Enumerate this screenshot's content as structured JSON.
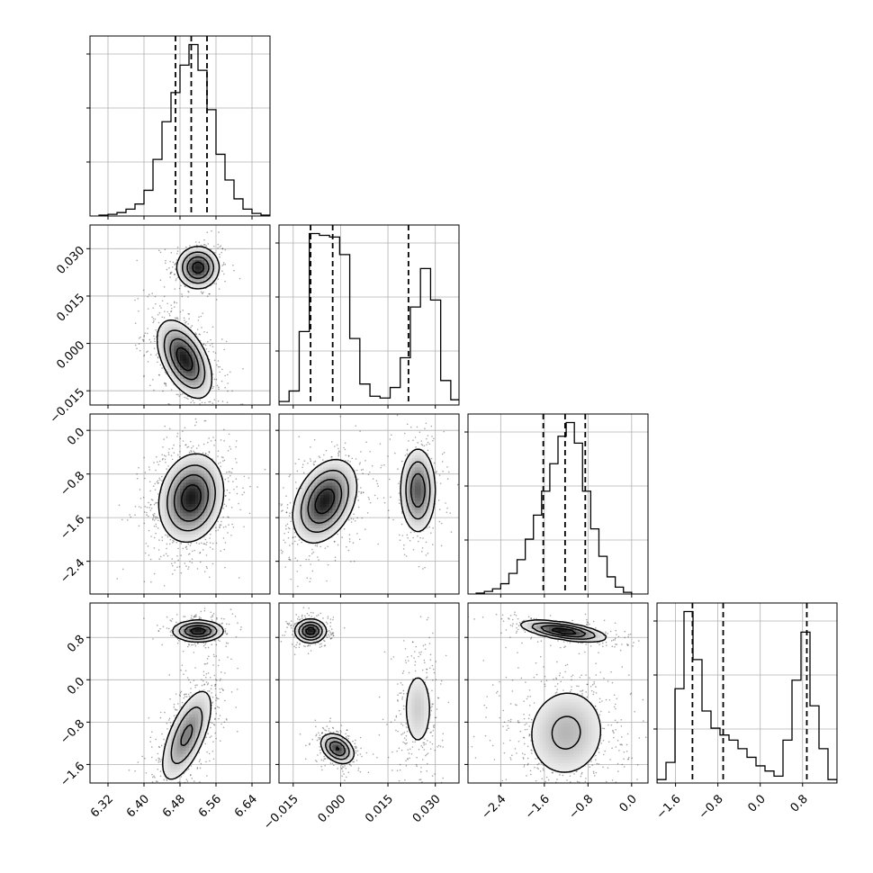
{
  "chart_data": {
    "type": "corner",
    "grid": true,
    "parameters": [
      {
        "name": "",
        "range": [
          6.28,
          6.68
        ],
        "ticks": [
          6.32,
          6.4,
          6.48,
          6.56,
          6.64
        ],
        "tick_labels": [
          "6.32",
          "6.40",
          "6.48",
          "6.56",
          "6.64"
        ],
        "quantiles": [
          6.47,
          6.505,
          6.54
        ],
        "hist_bins": [
          6.3,
          6.32,
          6.34,
          6.36,
          6.38,
          6.4,
          6.42,
          6.44,
          6.46,
          6.48,
          6.5,
          6.52,
          6.54,
          6.56,
          6.58,
          6.6,
          6.62,
          6.64,
          6.66
        ],
        "hist_counts": [
          0.005,
          0.01,
          0.02,
          0.04,
          0.07,
          0.15,
          0.33,
          0.55,
          0.72,
          0.88,
          1.0,
          0.85,
          0.62,
          0.36,
          0.21,
          0.1,
          0.04,
          0.015,
          0.005
        ]
      },
      {
        "name": "",
        "range": [
          -0.0195,
          0.0375
        ],
        "ticks": [
          -0.015,
          0.0,
          0.015,
          0.03
        ],
        "tick_labels": [
          "−0.015",
          "0.000",
          "0.015",
          "0.030"
        ],
        "quantiles": [
          -0.0095,
          -0.0025,
          0.0215
        ],
        "hist_bins": [
          -0.0195,
          -0.0163,
          -0.0131,
          -0.0099,
          -0.0067,
          -0.0035,
          -0.0003,
          0.0029,
          0.0061,
          0.0093,
          0.0125,
          0.0157,
          0.0189,
          0.0221,
          0.0253,
          0.0285,
          0.0317,
          0.0349
        ],
        "hist_counts": [
          0.02,
          0.08,
          0.42,
          0.98,
          0.97,
          0.96,
          0.86,
          0.38,
          0.12,
          0.05,
          0.04,
          0.1,
          0.27,
          0.56,
          0.78,
          0.6,
          0.14,
          0.03
        ]
      },
      {
        "name": "",
        "range": [
          -3.0,
          0.3
        ],
        "ticks": [
          -2.4,
          -1.6,
          -0.8,
          0.0
        ],
        "tick_labels": [
          "−2.4",
          "−1.6",
          "−0.8",
          "0.0"
        ],
        "quantiles": [
          -1.62,
          -1.22,
          -0.85
        ],
        "hist_bins": [
          -2.85,
          -2.7,
          -2.55,
          -2.4,
          -2.25,
          -2.1,
          -1.95,
          -1.8,
          -1.65,
          -1.5,
          -1.35,
          -1.2,
          -1.05,
          -0.9,
          -0.75,
          -0.6,
          -0.45,
          -0.3,
          -0.15
        ],
        "hist_counts": [
          0.005,
          0.015,
          0.03,
          0.06,
          0.12,
          0.2,
          0.32,
          0.46,
          0.6,
          0.76,
          0.92,
          1.0,
          0.88,
          0.6,
          0.38,
          0.22,
          0.1,
          0.04,
          0.01
        ]
      },
      {
        "name": "",
        "range": [
          -1.95,
          1.45
        ],
        "ticks": [
          -1.6,
          -0.8,
          0.0,
          0.8
        ],
        "tick_labels": [
          "−1.6",
          "−0.8",
          "0.0",
          "0.8"
        ],
        "quantiles": [
          -1.28,
          -0.7,
          0.88
        ],
        "hist_bins": [
          -1.95,
          -1.78,
          -1.61,
          -1.44,
          -1.27,
          -1.1,
          -0.93,
          -0.76,
          -0.59,
          -0.42,
          -0.25,
          -0.08,
          0.09,
          0.26,
          0.43,
          0.6,
          0.77,
          0.94,
          1.11,
          1.28
        ],
        "hist_counts": [
          0.02,
          0.12,
          0.55,
          1.0,
          0.72,
          0.42,
          0.32,
          0.28,
          0.25,
          0.2,
          0.15,
          0.1,
          0.07,
          0.04,
          0.25,
          0.6,
          0.88,
          0.45,
          0.2,
          0.02
        ]
      }
    ],
    "joint_modes": {
      "1-0": [
        {
          "cx": 6.52,
          "cy": 0.024,
          "sx": 0.021,
          "sy": 0.003,
          "rho": 0,
          "w": 0.32
        },
        {
          "cx": 6.49,
          "cy": -0.005,
          "sx": 0.027,
          "sy": 0.0055,
          "rho": -0.5,
          "w": 0.68
        }
      ],
      "2-0": [
        {
          "cx": 6.505,
          "cy": -1.24,
          "sx": 0.032,
          "sy": 0.36,
          "rho": 0.15,
          "w": 1.0
        }
      ],
      "2-1": [
        {
          "cx": -0.005,
          "cy": -1.3,
          "sx": 0.0045,
          "sy": 0.34,
          "rho": 0.35,
          "w": 0.68
        },
        {
          "cx": 0.0245,
          "cy": -1.1,
          "sx": 0.0026,
          "sy": 0.36,
          "rho": 0,
          "w": 0.32
        }
      ],
      "3-0": [
        {
          "cx": 6.52,
          "cy": 0.92,
          "sx": 0.025,
          "sy": 0.09,
          "rho": 0,
          "w": 0.32
        },
        {
          "cx": 6.495,
          "cy": -1.05,
          "sx": 0.027,
          "sy": 0.42,
          "rho": 0.65,
          "w": 0.68
        }
      ],
      "3-1": [
        {
          "cx": -0.0095,
          "cy": 0.92,
          "sx": 0.0022,
          "sy": 0.1,
          "rho": 0,
          "w": 0.32
        },
        {
          "cx": -0.001,
          "cy": -1.3,
          "sx": 0.0024,
          "sy": 0.13,
          "rho": -0.35,
          "w": 0.35
        },
        {
          "cx": 0.0245,
          "cy": -0.55,
          "sx": 0.0026,
          "sy": 0.42,
          "rho": 0,
          "w": 0.33
        }
      ],
      "3-2": [
        {
          "cx": -1.25,
          "cy": 0.92,
          "sx": 0.35,
          "sy": 0.09,
          "rho": -0.6,
          "w": 0.32
        },
        {
          "cx": -1.2,
          "cy": -1.0,
          "sx": 0.38,
          "sy": 0.45,
          "rho": 0.05,
          "w": 0.68
        }
      ]
    }
  }
}
